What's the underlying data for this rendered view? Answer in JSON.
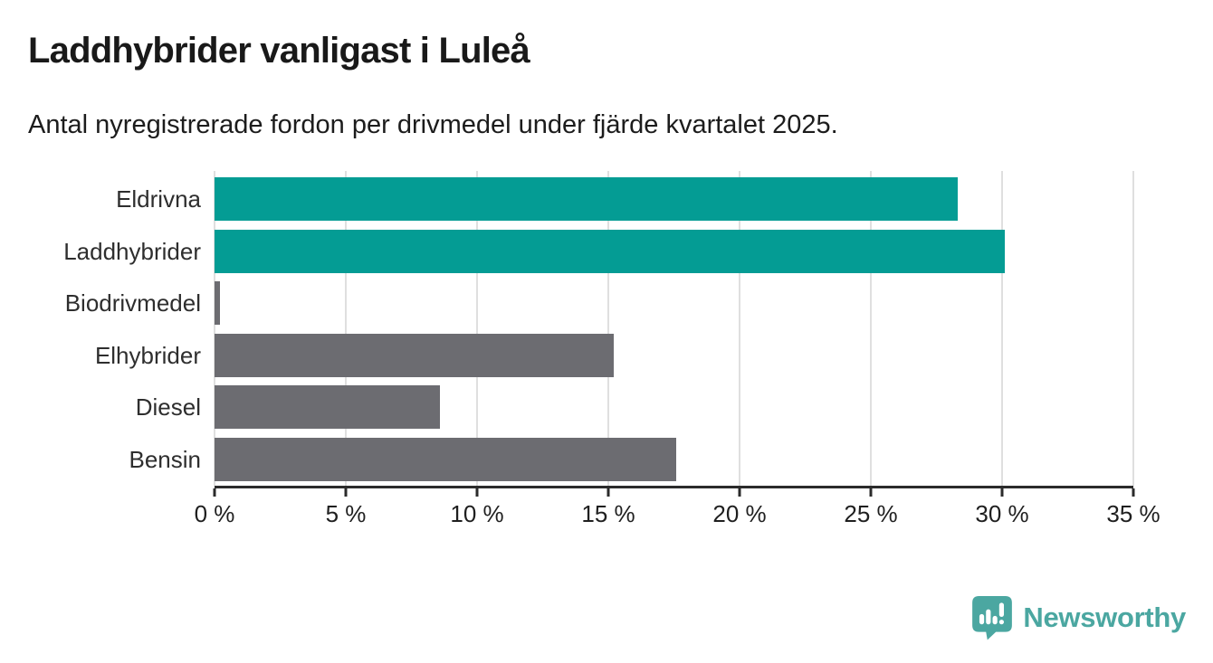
{
  "chart_data": {
    "type": "bar",
    "orientation": "horizontal",
    "title": "Laddhybrider vanligast i Luleå",
    "subtitle": "Antal nyregistrerade fordon per drivmedel under fjärde kvartalet 2025.",
    "categories": [
      "Eldrivna",
      "Laddhybrider",
      "Biodrivmedel",
      "Elhybrider",
      "Diesel",
      "Bensin"
    ],
    "values": [
      28.3,
      30.1,
      0.2,
      15.2,
      8.6,
      17.6
    ],
    "unit": "%",
    "bar_colors": [
      "#049c94",
      "#049c94",
      "#6c6c71",
      "#6c6c71",
      "#6c6c71",
      "#6c6c71"
    ],
    "xlim": [
      0,
      35
    ],
    "x_ticks": [
      0,
      5,
      10,
      15,
      20,
      25,
      30,
      35
    ],
    "x_tick_labels": [
      "0 %",
      "5 %",
      "10 %",
      "15 %",
      "20 %",
      "25 %",
      "30 %",
      "35 %"
    ],
    "grid": true,
    "legend": false
  },
  "colors": {
    "accent_teal": "#049c94",
    "neutral_gray": "#6c6c71",
    "gridline": "#dfdfdf",
    "axis": "#2b2b2b",
    "brand": "#4ba7a1"
  },
  "branding": {
    "logo_text": "Newsworthy"
  }
}
